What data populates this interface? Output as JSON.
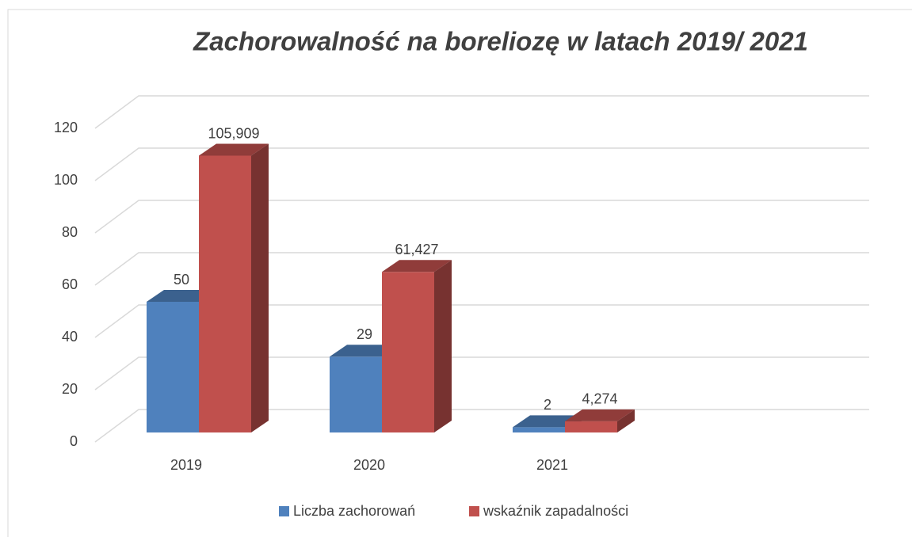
{
  "chart_data": {
    "type": "bar3d",
    "title": "Zachorowalność na boreliozę w latach 2019/ 2021",
    "categories": [
      "2019",
      "2020",
      "2021"
    ],
    "series": [
      {
        "name": "Liczba zachorowań",
        "color": "#4f81bd",
        "values": [
          50,
          29,
          2
        ]
      },
      {
        "name": "wskaźnik zapadalności",
        "color": "#c0504d",
        "values": [
          105.909,
          61.427,
          4.274
        ],
        "value_labels": [
          "105,909",
          "61,427",
          "4,274"
        ]
      }
    ],
    "ylim": [
      0,
      120
    ],
    "yticks": [
      0,
      20,
      40,
      60,
      80,
      100,
      120
    ],
    "grid": true,
    "legend": "bottom"
  }
}
